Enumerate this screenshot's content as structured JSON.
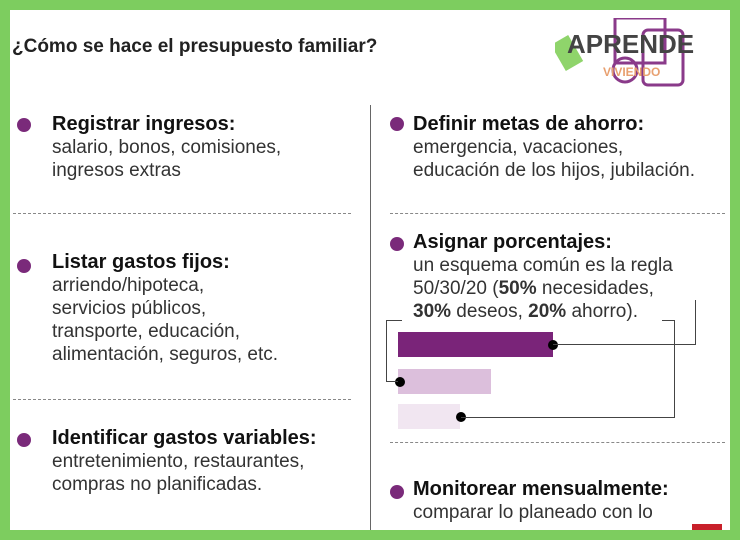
{
  "title": "¿Cómo se hace el presupuesto familiar?",
  "logo": {
    "text": "APRENDE",
    "subtext": "VIVIENDO"
  },
  "left": [
    {
      "heading": "Registrar ingresos:",
      "lines": [
        "salario, bonos, comisiones,",
        "ingresos extras"
      ]
    },
    {
      "heading": "Listar gastos fijos:",
      "lines": [
        "arriendo/hipoteca,",
        "servicios públicos,",
        "transporte, educación,",
        "alimentación, seguros, etc."
      ]
    },
    {
      "heading": "Identificar gastos variables:",
      "lines": [
        "entretenimiento, restaurantes,",
        "compras no planificadas."
      ]
    }
  ],
  "right": [
    {
      "heading": "Definir metas de ahorro:",
      "lines": [
        "emergencia, vacaciones,",
        "educación de los hijos, jubilación."
      ]
    },
    {
      "heading": "Asignar porcentajes:",
      "lines": [
        "un esquema común es la regla",
        "50/30/20 (",
        "50%",
        " necesidades,",
        "30%",
        " deseos, ",
        "20%",
        " ahorro)."
      ]
    },
    {
      "heading": "Monitorear mensualmente:",
      "lines": [
        "comparar lo planeado con lo"
      ]
    }
  ],
  "bars": [
    {
      "label": "necesidades",
      "percent": 50,
      "color": "#7a2479"
    },
    {
      "label": "deseos",
      "percent": 30,
      "color": "#dcbfdc"
    },
    {
      "label": "ahorro",
      "percent": 20,
      "color": "#f1e6f1"
    }
  ]
}
